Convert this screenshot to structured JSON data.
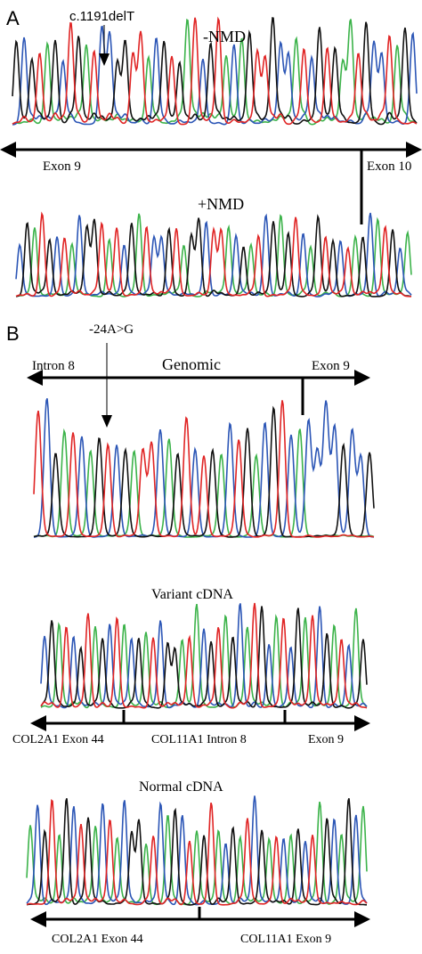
{
  "panels": {
    "a": "A",
    "b": "B"
  },
  "labels": {
    "mutation_a": "c.1191delT",
    "minus_nmd": "-NMD",
    "plus_nmd": "+NMD",
    "exon9_a": "Exon 9",
    "exon10_a": "Exon 10",
    "mutation_b": "-24A>G",
    "genomic": "Genomic",
    "intron8_b": "Intron 8",
    "exon9_b": "Exon 9",
    "variant_cdna": "Variant cDNA",
    "col2a1_ex44_v": "COL2A1 Exon 44",
    "col11a1_in8_v": "COL11A1 Intron 8",
    "exon9_v": "Exon 9",
    "normal_cdna": "Normal cDNA",
    "col2a1_ex44_n": "COL2A1 Exon 44",
    "col11a1_ex9_n": "COL11A1 Exon 9"
  },
  "trace_colors": {
    "A": "#3cb34a",
    "C": "#2c56b6",
    "G": "#111111",
    "T": "#e02525"
  },
  "traces": [
    {
      "name": "minus-nmd-trace",
      "bases": "GCGTAGCTGATCCGGTTACGTGATCGTACAGTTGCCATCGTGAATGCCTAGC",
      "noise": 0.55
    },
    {
      "name": "plus-nmd-trace",
      "bases": "CGATGCTACGGTATCGATCCGTAGGCTTACGATCGAGTCAGTGCTAGCATGCA",
      "noise": 0.35
    },
    {
      "name": "genomic-trace",
      "bases": "TCGATCAGTCGATTCAGTCTGACTGACGTCACCCCGCCG",
      "noise": 0.08
    },
    {
      "name": "variant-cdna-trace",
      "bases": "CGATCGTAGCTACGATCGGATACGTAGCATGCATCGATCGATCAG",
      "noise": 0.3
    },
    {
      "name": "normal-cdna-trace",
      "bases": "ACGTAGCTGACTACGGATCAGCTAGTACGATCGATCAGCTAGCAGCA",
      "noise": 0.3
    }
  ]
}
